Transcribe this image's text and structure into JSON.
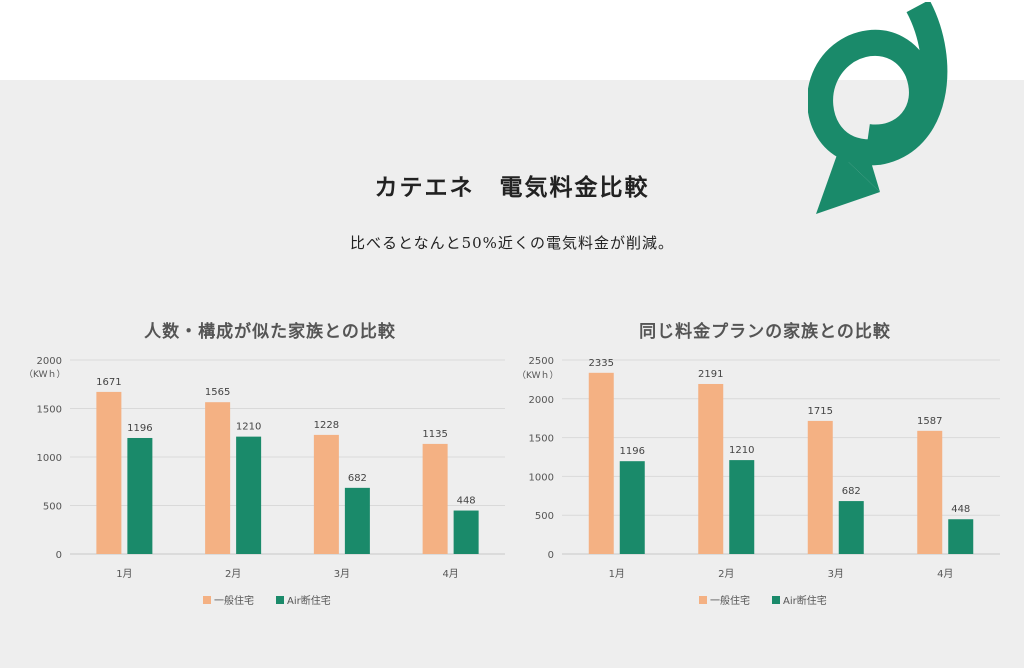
{
  "header": {
    "title": "カテエネ　電気料金比較",
    "subtitle": "比べるとなんと50%近くの電気料金が削減。"
  },
  "colors": {
    "series1": "#f4b183",
    "series2": "#1a8a6a",
    "logo": "#1a8a6a",
    "panel": "#eeeeee"
  },
  "chart_data": [
    {
      "type": "bar",
      "title": "人数・構成が似た家族との比較",
      "ylabel": "（KWｈ）",
      "categories": [
        "1月",
        "2月",
        "3月",
        "4月"
      ],
      "ylim": [
        0,
        2000
      ],
      "yticks": [
        0,
        500,
        1000,
        1500,
        2000
      ],
      "grid": true,
      "legend": "bottom",
      "series": [
        {
          "name": "一般住宅",
          "values": [
            1671,
            1565,
            1228,
            1135
          ]
        },
        {
          "name": "Air断住宅",
          "values": [
            1196,
            1210,
            682,
            448
          ]
        }
      ]
    },
    {
      "type": "bar",
      "title": "同じ料金プランの家族との比較",
      "ylabel": "（KWｈ）",
      "categories": [
        "1月",
        "2月",
        "3月",
        "4月"
      ],
      "ylim": [
        0,
        2500
      ],
      "yticks": [
        0,
        500,
        1000,
        1500,
        2000,
        2500
      ],
      "grid": true,
      "legend": "bottom",
      "series": [
        {
          "name": "一般住宅",
          "values": [
            2335,
            2191,
            1715,
            1587
          ]
        },
        {
          "name": "Air断住宅",
          "values": [
            1196,
            1210,
            682,
            448
          ]
        }
      ]
    }
  ]
}
